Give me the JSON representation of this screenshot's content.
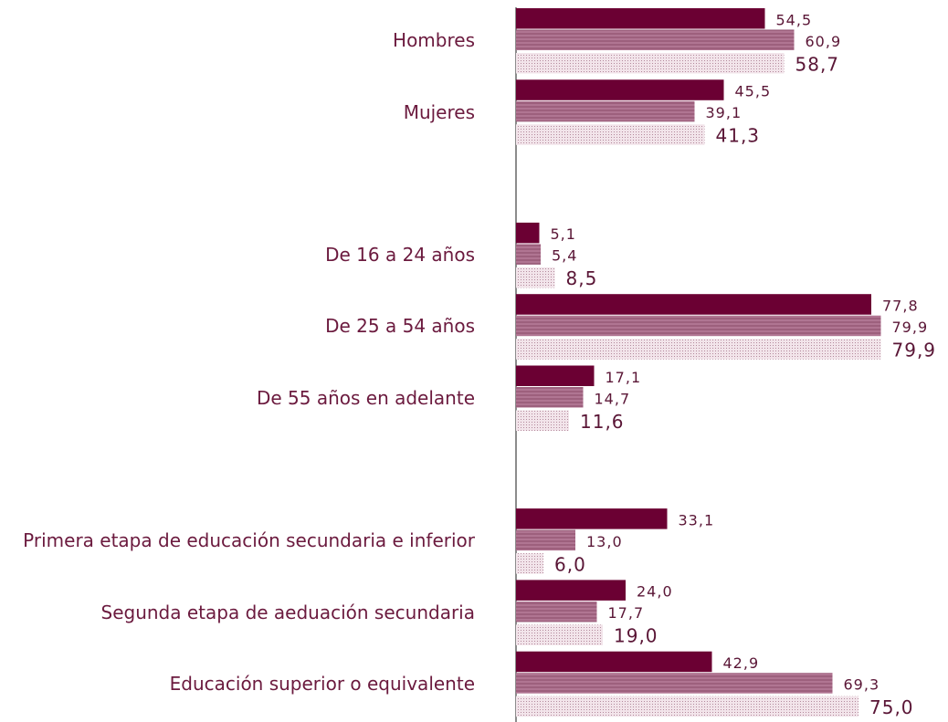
{
  "chart_data": {
    "type": "hbar",
    "categories": [
      "Hombres",
      "Mujeres",
      null,
      "De 16 a 24 años",
      "De 25 a 54 años",
      "De 55 años en adelante",
      null,
      "Primera etapa de educación secundaria e inferior",
      "Segunda etapa de aeduación secundaria",
      "Educación superior o equivalente"
    ],
    "xlim": [
      0,
      80
    ],
    "series": [
      {
        "color": "#6b0033",
        "values": [
          54.5,
          45.5,
          null,
          5.1,
          77.8,
          17.1,
          null,
          33.1,
          24.0,
          42.9
        ],
        "value_labels": [
          "54,5",
          "45,5",
          null,
          "5,1",
          "77,8",
          "17,1",
          null,
          "33,1",
          "24,0",
          "42,9"
        ]
      },
      {
        "color": "#b07592",
        "values": [
          60.9,
          39.1,
          null,
          5.4,
          79.9,
          14.7,
          null,
          13.0,
          17.7,
          69.3
        ],
        "value_labels": [
          "60,9",
          "39,1",
          null,
          "5,4",
          "79,9",
          "14,7",
          null,
          "13,0",
          "17,7",
          "69,3"
        ]
      },
      {
        "color": "#e6d0d8",
        "values": [
          58.7,
          41.3,
          null,
          8.5,
          79.9,
          11.6,
          null,
          6.0,
          19.0,
          75.0
        ],
        "value_labels": [
          "58,7",
          "41,3",
          null,
          "8,5",
          "79,9",
          "11,6",
          null,
          "6,0",
          "19,0",
          "75,0"
        ]
      }
    ]
  }
}
